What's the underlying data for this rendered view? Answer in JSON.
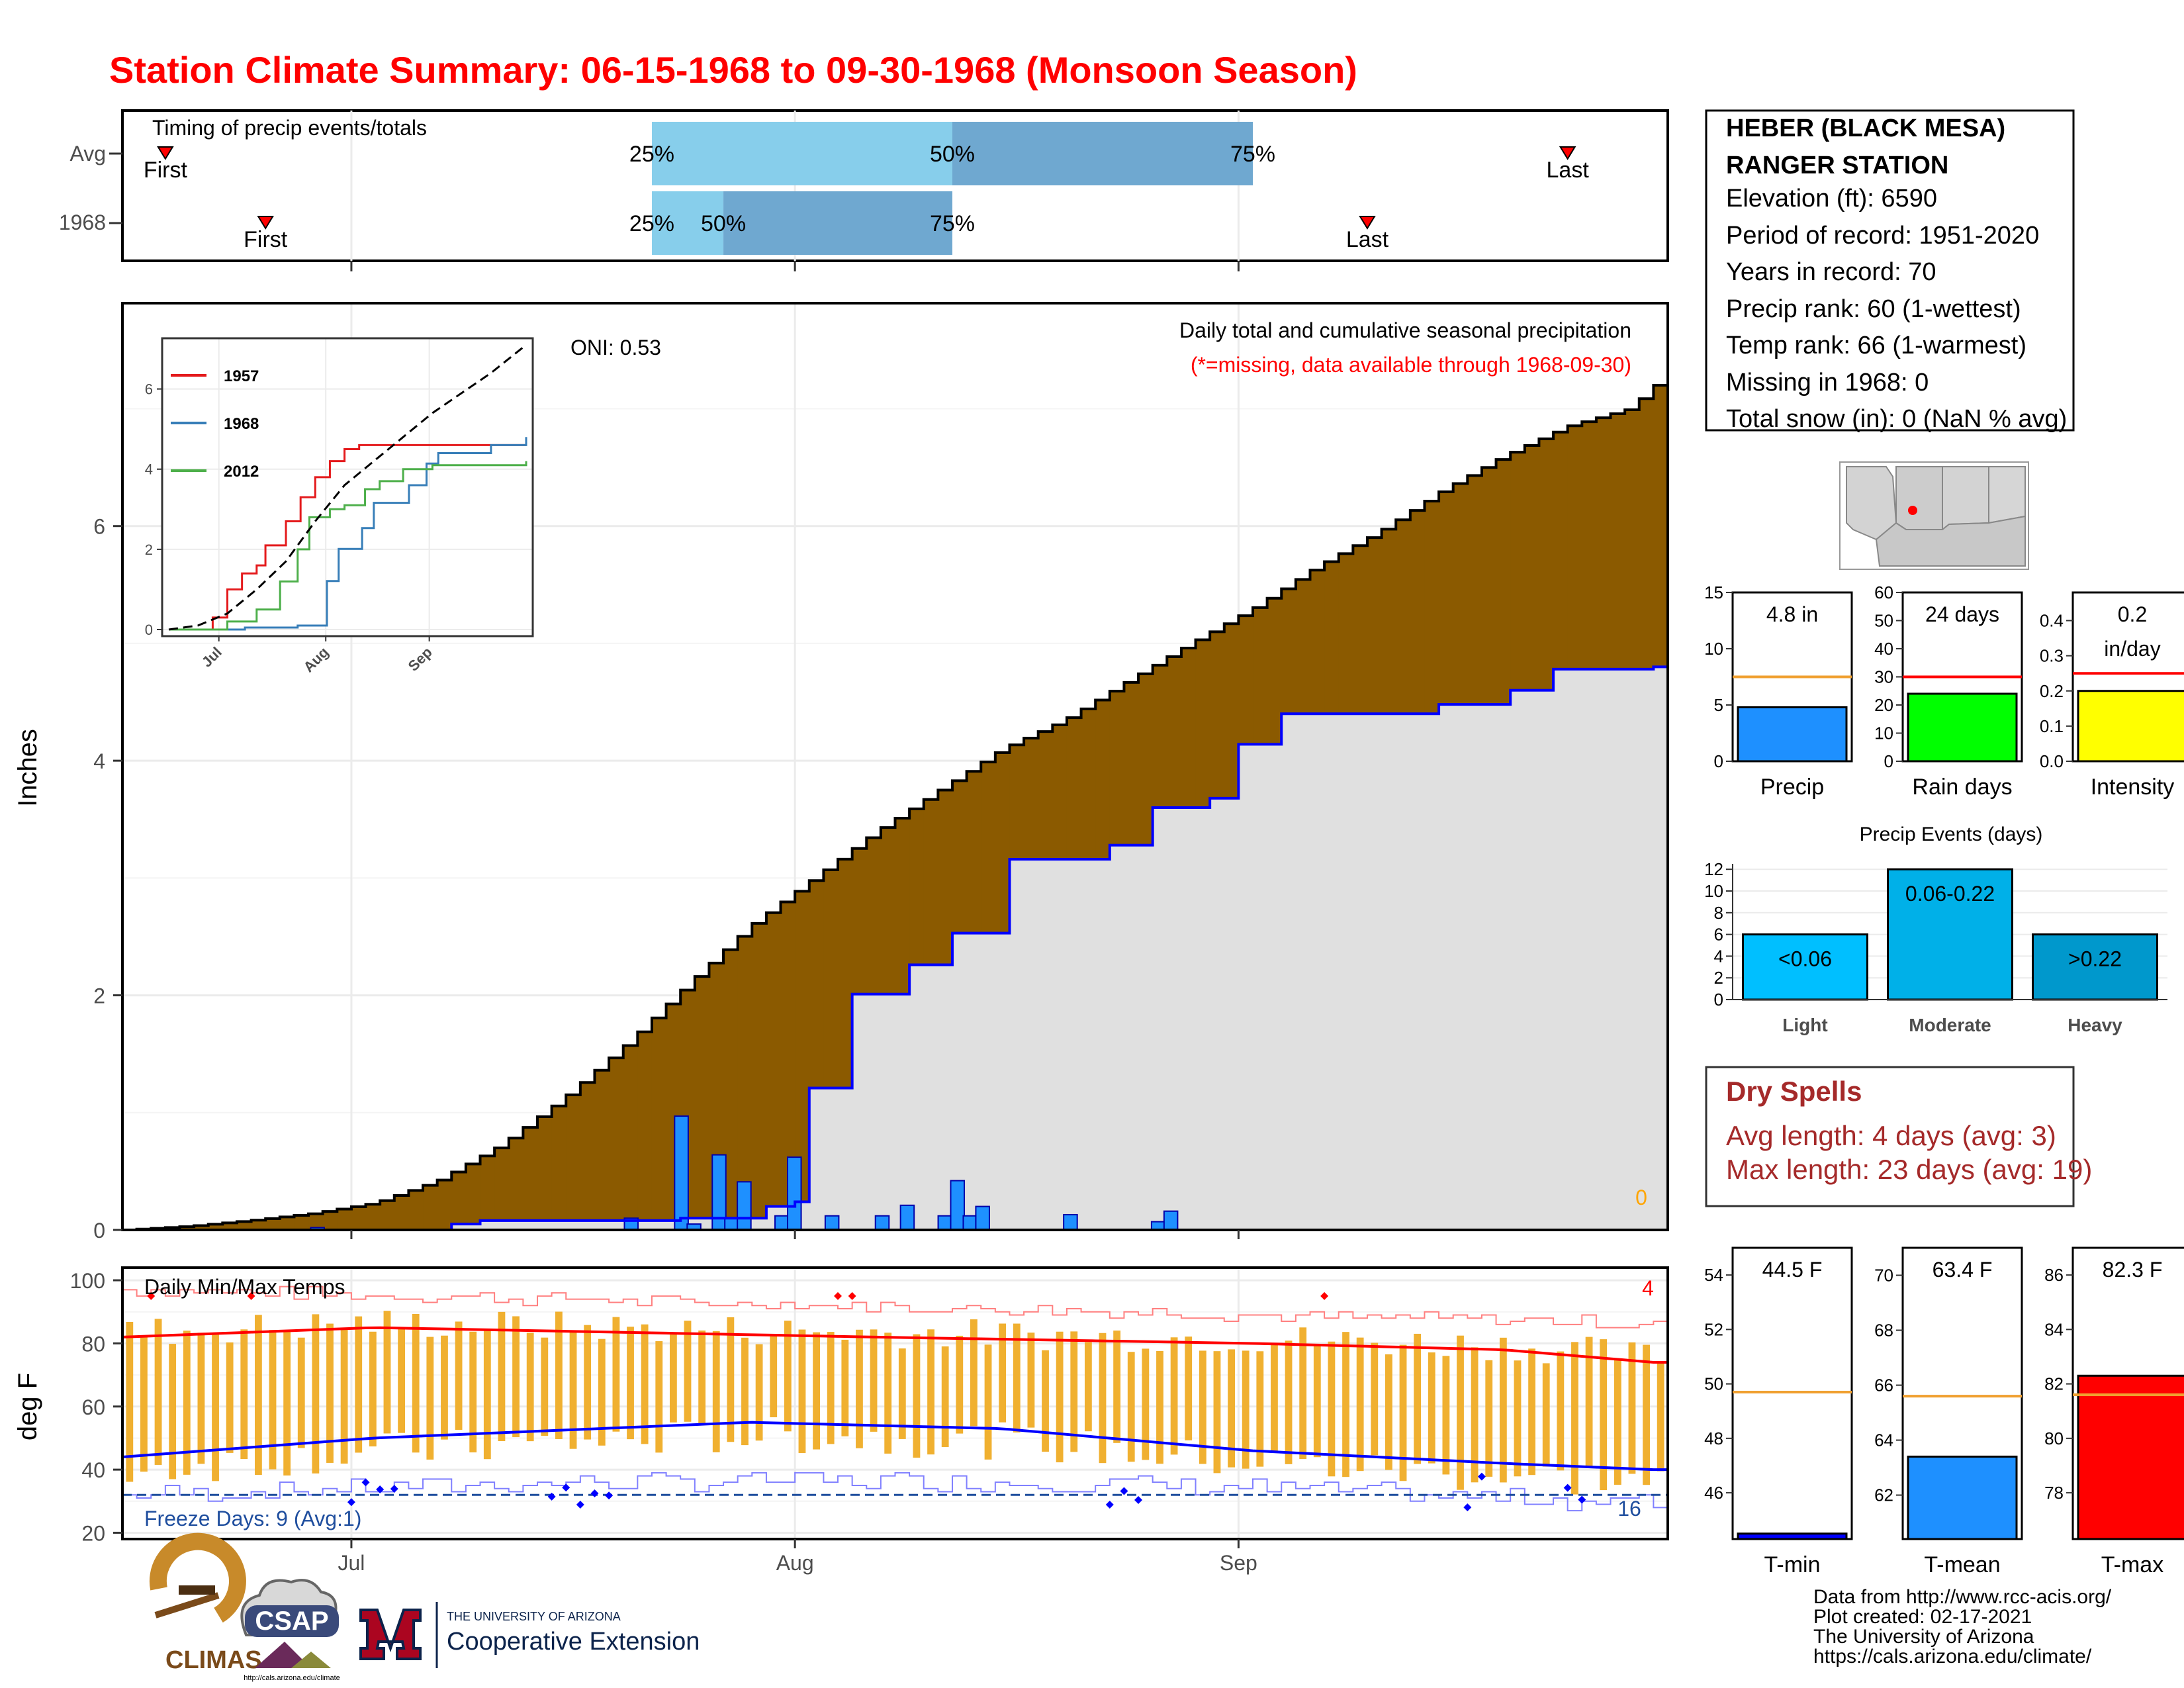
{
  "title": "Station Climate Summary: 06-15-1968 to 09-30-1968 (Monsoon Season)",
  "colors": {
    "title": "#ff0000",
    "cum_avg_fill": "#8b5a00",
    "cum_above_fill": "#008000",
    "cum_below_fill": "#e0e0e0",
    "daily_bar": "#1e90ff",
    "q_light": "#87ceeb",
    "q_dark": "#6fa8d0",
    "temp_bar": "#f0b030",
    "tmax_line": "#ff0000",
    "tmin_line": "#0000ff",
    "freeze_line": "#1f4e9e",
    "dry_spell_text": "#a52a2a",
    "series_1957": "#e41a1c",
    "series_1968": "#377eb8",
    "series_2012": "#4daf4a"
  },
  "timing": {
    "title": "Timing of precip events/totals",
    "rows": [
      {
        "label": "Avg",
        "first_day": 3,
        "last_day": 101,
        "q25": 37,
        "q50": 58,
        "q75": 79,
        "first_label": "First",
        "last_label": "Last"
      },
      {
        "label": "1968",
        "first_day": 10,
        "last_day": 87,
        "q25": 37,
        "q50": 42,
        "q75": 58,
        "first_label": "First",
        "last_label": "Last"
      }
    ],
    "q_labels": [
      "25%",
      "50%",
      "75%"
    ]
  },
  "precip_panel": {
    "ylabel": "Inches",
    "oni": "ONI: 0.53",
    "subtitle": "Daily total and cumulative seasonal precipitation",
    "note": "(*=missing, data available through 1968-09-30)",
    "missing_count": "0",
    "y_ticks": [
      "0",
      "2",
      "4",
      "6"
    ],
    "x_ticks": [
      "Jul",
      "Aug",
      "Sep"
    ]
  },
  "chart_data": [
    {
      "type": "area",
      "title": "Daily total and cumulative seasonal precipitation",
      "ylabel": "Inches",
      "ylim": [
        0,
        7.9
      ],
      "x_start": "1968-06-15",
      "x_end": "1968-09-30",
      "x_ticks": [
        "Jul",
        "Aug",
        "Sep"
      ],
      "avg_cumulative": [
        [
          0,
          0
        ],
        [
          5,
          0.03
        ],
        [
          10,
          0.08
        ],
        [
          15,
          0.14
        ],
        [
          20,
          0.23
        ],
        [
          25,
          0.42
        ],
        [
          30,
          0.72
        ],
        [
          35,
          1.12
        ],
        [
          40,
          1.58
        ],
        [
          45,
          2.1
        ],
        [
          50,
          2.6
        ],
        [
          55,
          3.0
        ],
        [
          60,
          3.4
        ],
        [
          65,
          3.75
        ],
        [
          70,
          4.1
        ],
        [
          75,
          4.35
        ],
        [
          80,
          4.68
        ],
        [
          85,
          5.0
        ],
        [
          90,
          5.3
        ],
        [
          95,
          5.65
        ],
        [
          100,
          5.95
        ],
        [
          105,
          6.3
        ],
        [
          110,
          6.6
        ],
        [
          115,
          6.85
        ],
        [
          120,
          7.0
        ],
        [
          122,
          7.2
        ]
      ],
      "cum_1968": [
        [
          0,
          0
        ],
        [
          26,
          0.05
        ],
        [
          28,
          0.08
        ],
        [
          44,
          0.1
        ],
        [
          51,
          0.2
        ],
        [
          53,
          0.24
        ],
        [
          54,
          1.21
        ],
        [
          58,
          2.01
        ],
        [
          62,
          2.26
        ],
        [
          66,
          2.53
        ],
        [
          70,
          3.16
        ],
        [
          78,
          3.28
        ],
        [
          82,
          3.6
        ],
        [
          86,
          3.68
        ],
        [
          88,
          4.14
        ],
        [
          92,
          4.4
        ],
        [
          104,
          4.48
        ],
        [
          110,
          4.6
        ],
        [
          114,
          4.78
        ],
        [
          122,
          4.8
        ]
      ],
      "daily_1968": [
        [
          15,
          0.02
        ],
        [
          40,
          0.1
        ],
        [
          44,
          0.97
        ],
        [
          45,
          0.05
        ],
        [
          47,
          0.64
        ],
        [
          48,
          0.1
        ],
        [
          49,
          0.41
        ],
        [
          52,
          0.12
        ],
        [
          53,
          0.62
        ],
        [
          56,
          0.12
        ],
        [
          60,
          0.12
        ],
        [
          62,
          0.21
        ],
        [
          65,
          0.12
        ],
        [
          66,
          0.42
        ],
        [
          67,
          0.12
        ],
        [
          68,
          0.2
        ],
        [
          75,
          0.13
        ],
        [
          82,
          0.07
        ],
        [
          83,
          0.16
        ]
      ]
    },
    {
      "type": "line",
      "title": "",
      "x_ticks": [
        "Jul",
        "Aug",
        "Sep"
      ],
      "ylim": [
        0,
        7.1
      ],
      "y_ticks": [
        0,
        2,
        4,
        6
      ],
      "series": [
        {
          "name": "1957",
          "values": [
            [
              0,
              0
            ],
            [
              15,
              0.3
            ],
            [
              20,
              1.0
            ],
            [
              25,
              1.4
            ],
            [
              30,
              1.6
            ],
            [
              33,
              2.1
            ],
            [
              40,
              2.7
            ],
            [
              45,
              3.3
            ],
            [
              50,
              3.8
            ],
            [
              55,
              4.2
            ],
            [
              60,
              4.5
            ],
            [
              65,
              4.6
            ],
            [
              70,
              4.6
            ],
            [
              122,
              4.6
            ]
          ]
        },
        {
          "name": "1968",
          "values": [
            [
              0,
              0
            ],
            [
              26,
              0.05
            ],
            [
              44,
              0.1
            ],
            [
              54,
              1.21
            ],
            [
              58,
              2.01
            ],
            [
              66,
              2.53
            ],
            [
              70,
              3.16
            ],
            [
              82,
              3.6
            ],
            [
              88,
              4.14
            ],
            [
              92,
              4.4
            ],
            [
              110,
              4.6
            ],
            [
              122,
              4.8
            ]
          ]
        },
        {
          "name": "2012",
          "values": [
            [
              0,
              0
            ],
            [
              20,
              0.2
            ],
            [
              30,
              0.5
            ],
            [
              38,
              1.2
            ],
            [
              44,
              2.0
            ],
            [
              48,
              2.8
            ],
            [
              55,
              3.0
            ],
            [
              60,
              3.1
            ],
            [
              67,
              3.5
            ],
            [
              72,
              3.7
            ],
            [
              80,
              4.0
            ],
            [
              90,
              4.1
            ],
            [
              122,
              4.2
            ]
          ]
        },
        {
          "name": "",
          "values": [
            [
              0,
              0
            ],
            [
              10,
              0.1
            ],
            [
              20,
              0.4
            ],
            [
              30,
              1.0
            ],
            [
              40,
              1.7
            ],
            [
              50,
              2.7
            ],
            [
              60,
              3.6
            ],
            [
              70,
              4.2
            ],
            [
              80,
              4.8
            ],
            [
              90,
              5.4
            ],
            [
              100,
              5.9
            ],
            [
              110,
              6.4
            ],
            [
              122,
              7.1
            ]
          ]
        }
      ]
    },
    {
      "type": "bar",
      "title": "Daily Min/Max Temps",
      "ylabel": "deg F",
      "ylim": [
        18,
        104
      ],
      "y_ticks": [
        20,
        40,
        60,
        80,
        100
      ],
      "x_ticks": [
        "Jul",
        "Aug",
        "Sep"
      ],
      "tmax_avg": [
        [
          0,
          82
        ],
        [
          20,
          85
        ],
        [
          60,
          82
        ],
        [
          90,
          80
        ],
        [
          110,
          78
        ],
        [
          122,
          74
        ]
      ],
      "tmin_avg": [
        [
          0,
          44
        ],
        [
          20,
          50
        ],
        [
          50,
          55
        ],
        [
          70,
          53
        ],
        [
          90,
          46
        ],
        [
          110,
          42
        ],
        [
          122,
          40
        ]
      ],
      "freeze_line": 32,
      "record_max_count": "4",
      "record_min_count": "16"
    },
    {
      "type": "bar",
      "categories": [
        "Precip",
        "Rain days",
        "Intensity"
      ],
      "values": [
        4.8,
        24,
        0.2
      ],
      "avg": [
        7.5,
        30,
        0.25
      ],
      "value_labels": [
        "4.8 in",
        "24 days",
        "0.2\nin/day"
      ],
      "ylims": [
        [
          0,
          15
        ],
        [
          0,
          60
        ],
        [
          0,
          0.48
        ]
      ]
    },
    {
      "type": "bar",
      "title": "Precip Events (days)",
      "categories": [
        "Light",
        "Moderate",
        "Heavy"
      ],
      "values": [
        6,
        12,
        6
      ],
      "value_labels": [
        "<0.06",
        "0.06-0.22",
        ">0.22"
      ],
      "ylim": [
        0,
        12.5
      ],
      "y_ticks": [
        0,
        2,
        4,
        6,
        8,
        10,
        12
      ]
    },
    {
      "type": "bar",
      "categories": [
        "T-min",
        "T-mean",
        "T-max"
      ],
      "values": [
        44.5,
        63.4,
        82.3
      ],
      "avg": [
        49.7,
        65.6,
        81.6
      ],
      "value_labels": [
        "44.5 F",
        "63.4 F",
        "82.3 F"
      ],
      "ylims": [
        [
          44.3,
          55
        ],
        [
          60.4,
          71
        ],
        [
          76.3,
          87
        ]
      ]
    }
  ],
  "station": {
    "name1": "HEBER (BLACK MESA)",
    "name2": "RANGER STATION",
    "elevation": "Elevation (ft): 6590",
    "period": "Period of record: 1951-2020",
    "years": "Years in record: 70",
    "precip_rank": "Precip rank: 60 (1-wettest)",
    "temp_rank": "Temp rank: 66 (1-warmest)",
    "missing": "Missing in 1968: 0",
    "snow": "Total snow (in): 0 (NaN % avg)"
  },
  "dry_spells": {
    "title": "Dry Spells",
    "avg": "Avg length: 4 days (avg: 3)",
    "max": "Max length: 23 days (avg: 19)"
  },
  "temp_panel": {
    "title": "Daily Min/Max Temps",
    "ylabel": "deg F",
    "freeze": "Freeze Days: 9 (Avg:1)",
    "record_max": "4",
    "record_min": "16"
  },
  "footer": {
    "line1": "Data from http://www.rcc-acis.org/",
    "line2": "Plot created: 02-17-2021",
    "line3": "The University of Arizona",
    "line4": "https://cals.arizona.edu/climate/",
    "ua_small": "THE UNIVERSITY OF ARIZONA",
    "ua_big": "Cooperative Extension",
    "climas": "CLIMAS",
    "csap": "CSAP",
    "csap_url": "http://cals.arizona.edu/climate"
  }
}
